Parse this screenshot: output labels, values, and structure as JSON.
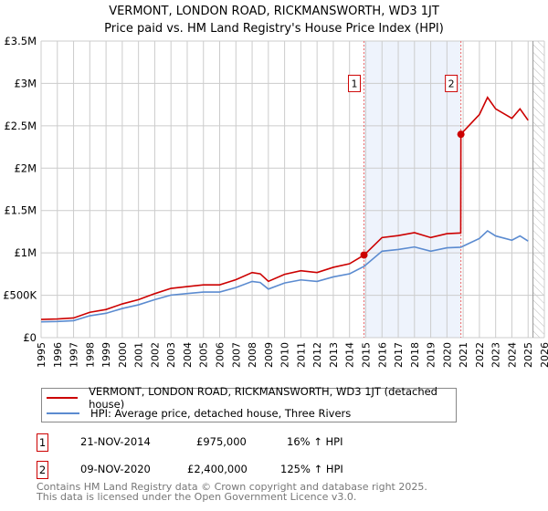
{
  "chart_data": {
    "type": "line",
    "title": "VERMONT, LONDON ROAD, RICKMANSWORTH, WD3 1JT",
    "subtitle": "Price paid vs. HM Land Registry's House Price Index (HPI)",
    "xlim": [
      1995,
      2026
    ],
    "ylim": [
      0,
      3500000
    ],
    "x_ticks": [
      "1995",
      "1996",
      "1997",
      "1998",
      "1999",
      "2000",
      "2001",
      "2002",
      "2003",
      "2004",
      "2005",
      "2006",
      "2007",
      "2008",
      "2009",
      "2010",
      "2011",
      "2012",
      "2013",
      "2014",
      "2015",
      "2016",
      "2017",
      "2018",
      "2019",
      "2020",
      "2021",
      "2022",
      "2023",
      "2024",
      "2025",
      "2026"
    ],
    "y_ticks": [
      {
        "v": 0,
        "label": "£0"
      },
      {
        "v": 500000,
        "label": "£500K"
      },
      {
        "v": 1000000,
        "label": "£1M"
      },
      {
        "v": 1500000,
        "label": "£1.5M"
      },
      {
        "v": 2000000,
        "label": "£2M"
      },
      {
        "v": 2500000,
        "label": "£2.5M"
      },
      {
        "v": 3000000,
        "label": "£3M"
      },
      {
        "v": 3500000,
        "label": "£3.5M"
      }
    ],
    "grid": true,
    "series": [
      {
        "name": "VERMONT, LONDON ROAD, RICKMANSWORTH, WD3 1JT (detached house)",
        "color": "#cc0000",
        "x": [
          1995,
          1996,
          1997,
          1998,
          1999,
          2000,
          2001,
          2002,
          2003,
          2004,
          2005,
          2006,
          2007,
          2008,
          2008.5,
          2009,
          2010,
          2011,
          2012,
          2013,
          2014,
          2014.9,
          2016,
          2017,
          2018,
          2019,
          2020,
          2020.85,
          2020.86,
          2021,
          2022,
          2022.5,
          2023,
          2024,
          2024.5,
          2025
        ],
        "values": [
          215000,
          220000,
          232000,
          299000,
          332000,
          398000,
          448000,
          519000,
          581000,
          602000,
          623000,
          623000,
          684000,
          768000,
          753000,
          664000,
          747000,
          789000,
          768000,
          830000,
          872000,
          975000,
          1181000,
          1204000,
          1239000,
          1181000,
          1227000,
          1235000,
          2400000,
          2430000,
          2633000,
          2835000,
          2700000,
          2588000,
          2700000,
          2565000
        ]
      },
      {
        "name": "HPI: Average price, detached house, Three Rivers",
        "color": "#5b8bd0",
        "x": [
          1995,
          1996,
          1997,
          1998,
          1999,
          2000,
          2001,
          2002,
          2003,
          2004,
          2005,
          2006,
          2007,
          2008,
          2008.5,
          2009,
          2010,
          2011,
          2012,
          2013,
          2014,
          2014.9,
          2016,
          2017,
          2018,
          2019,
          2020,
          2020.86,
          2021,
          2022,
          2022.5,
          2023,
          2024,
          2024.5,
          2025
        ],
        "values": [
          186000,
          190000,
          200000,
          258000,
          287000,
          344000,
          387000,
          448000,
          502000,
          520000,
          538000,
          538000,
          591000,
          663000,
          650000,
          573000,
          645000,
          681000,
          663000,
          717000,
          753000,
          842000,
          1020000,
          1040000,
          1070000,
          1020000,
          1060000,
          1067000,
          1080000,
          1170000,
          1260000,
          1200000,
          1150000,
          1200000,
          1140000
        ]
      }
    ],
    "sales": [
      {
        "label": "1",
        "x": 2014.89,
        "value": 975000,
        "date": "21-NOV-2014",
        "price": "£975,000",
        "hpi": "16% ↑ HPI"
      },
      {
        "label": "2",
        "x": 2020.86,
        "value": 2400000,
        "date": "09-NOV-2020",
        "price": "£2,400,000",
        "hpi": "125% ↑ HPI"
      }
    ],
    "forecast_start": 2025.3
  },
  "footer": {
    "line1": "Contains HM Land Registry data © Crown copyright and database right 2025.",
    "line2": "This data is licensed under the Open Government Licence v3.0."
  }
}
